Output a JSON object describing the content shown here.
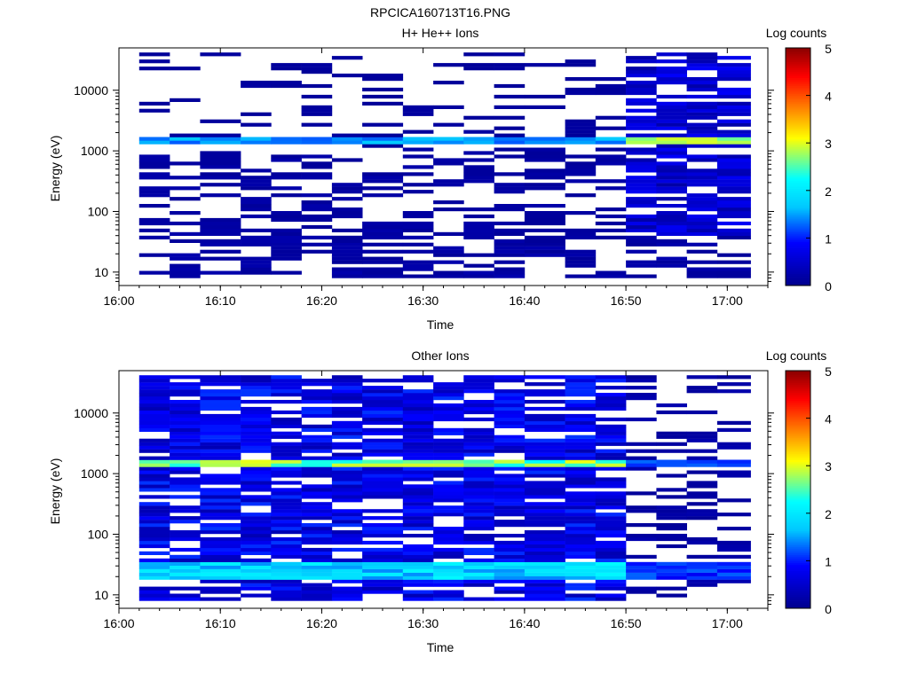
{
  "figure": {
    "title": "RPCICA160713T16.PNG"
  },
  "colors": {
    "white": "#ffffff",
    "colormap": [
      "#00008c",
      "#0000ff",
      "#00c8ff",
      "#00ffff",
      "#ffff00",
      "#ff8000",
      "#ff0000",
      "#8b0000"
    ]
  },
  "chart_data": [
    {
      "type": "heatmap",
      "title": "H+ He++ Ions",
      "xlabel": "Time",
      "ylabel": "Energy (eV)",
      "colorbar_label": "Log counts",
      "yscale": "log",
      "ylim": [
        6,
        50000
      ],
      "xlim": [
        "16:00",
        "17:04"
      ],
      "xticks": [
        "16:00",
        "16:10",
        "16:20",
        "16:30",
        "16:40",
        "16:50",
        "17:00"
      ],
      "yticks": [
        "10",
        "100",
        "1000",
        "10000"
      ],
      "colorbar_ticks": [
        "0",
        "1",
        "2",
        "3",
        "4",
        "5"
      ],
      "zlim": [
        0,
        5
      ],
      "time_bins_start": [
        "16:02",
        "16:05",
        "16:08",
        "16:12",
        "16:15",
        "16:18",
        "16:21",
        "16:24",
        "16:28",
        "16:31",
        "16:34",
        "16:37",
        "16:40",
        "16:44",
        "16:47",
        "16:50",
        "16:53",
        "16:56",
        "16:59"
      ],
      "bright_band_energy_eV": 1400
    },
    {
      "type": "heatmap",
      "title": "Other Ions",
      "xlabel": "Time",
      "ylabel": "Energy (eV)",
      "colorbar_label": "Log counts",
      "yscale": "log",
      "ylim": [
        6,
        50000
      ],
      "xlim": [
        "16:00",
        "17:04"
      ],
      "xticks": [
        "16:00",
        "16:10",
        "16:20",
        "16:30",
        "16:40",
        "16:50",
        "17:00"
      ],
      "yticks": [
        "10",
        "100",
        "1000",
        "10000"
      ],
      "colorbar_ticks": [
        "0",
        "1",
        "2",
        "3",
        "4",
        "5"
      ],
      "zlim": [
        0,
        5
      ],
      "time_bins_start": [
        "16:02",
        "16:05",
        "16:08",
        "16:12",
        "16:15",
        "16:18",
        "16:21",
        "16:24",
        "16:28",
        "16:31",
        "16:34",
        "16:37",
        "16:40",
        "16:44",
        "16:47",
        "16:50",
        "16:53",
        "16:56",
        "16:59"
      ],
      "bright_band_energy_eV": 1400
    }
  ]
}
